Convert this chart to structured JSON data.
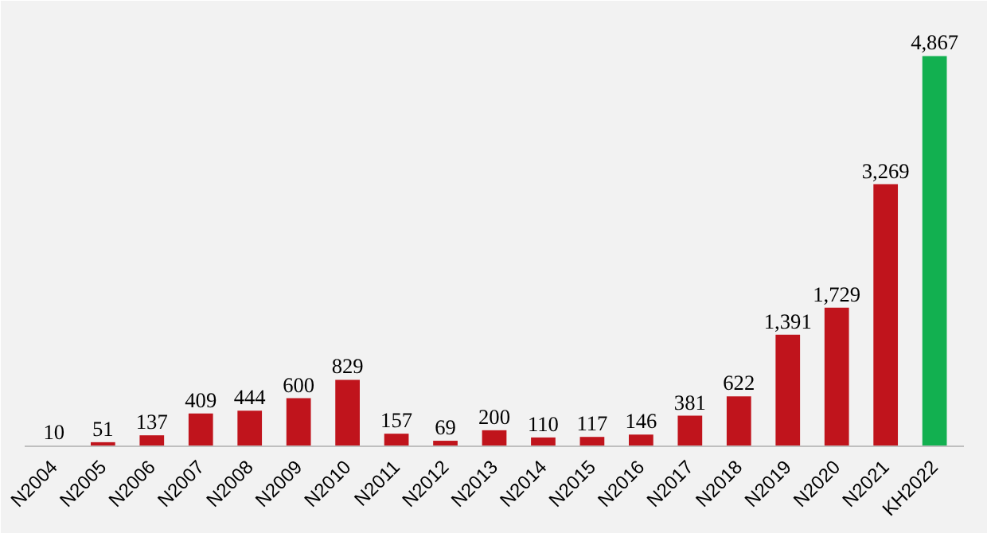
{
  "chart_data": {
    "type": "bar",
    "categories": [
      "N2004",
      "N2005",
      "N2006",
      "N2007",
      "N2008",
      "N2009",
      "N2010",
      "N2011",
      "N2012",
      "N2013",
      "N2014",
      "N2015",
      "N2016",
      "N2017",
      "N2018",
      "N2019",
      "N2020",
      "N2021",
      "KH2022"
    ],
    "values": [
      10,
      51,
      137,
      409,
      444,
      600,
      829,
      157,
      69,
      200,
      110,
      117,
      146,
      381,
      622,
      1391,
      1729,
      3269,
      4867
    ],
    "colors": [
      "#c0141c",
      "#c0141c",
      "#c0141c",
      "#c0141c",
      "#c0141c",
      "#c0141c",
      "#c0141c",
      "#c0141c",
      "#c0141c",
      "#c0141c",
      "#c0141c",
      "#c0141c",
      "#c0141c",
      "#c0141c",
      "#c0141c",
      "#c0141c",
      "#c0141c",
      "#c0141c",
      "#12b050"
    ],
    "value_labels": [
      "10",
      "51",
      "137",
      "409",
      "444",
      "600",
      "829",
      "157",
      "69",
      "200",
      "110",
      "117",
      "146",
      "381",
      "622",
      "1,391",
      "1,729",
      "3,269",
      "4,867"
    ],
    "grid": false
  }
}
